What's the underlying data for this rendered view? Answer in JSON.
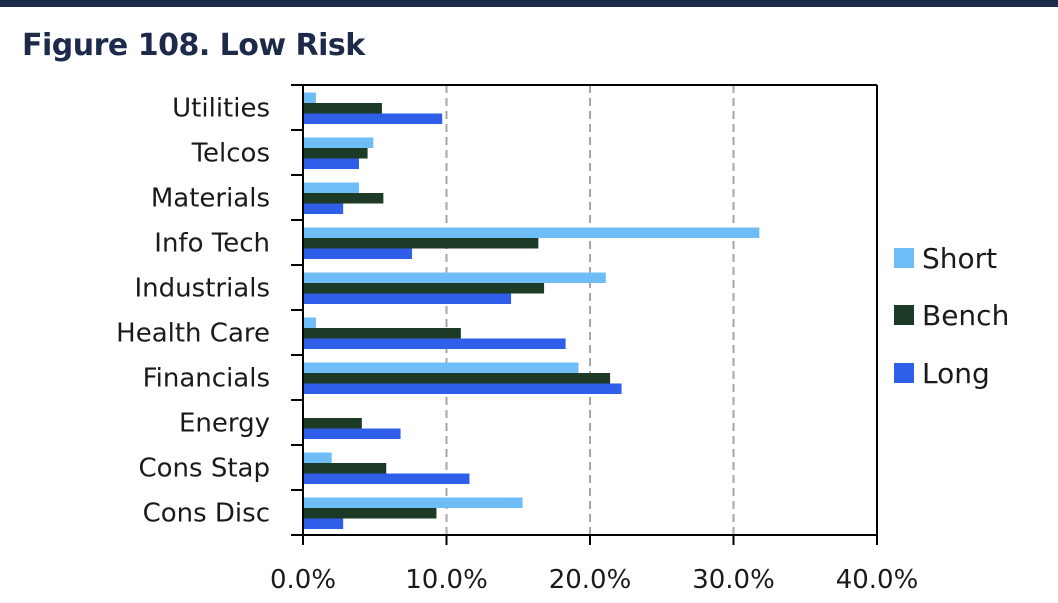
{
  "figure": {
    "title": "Figure 108. Low Risk"
  },
  "chart_data": {
    "type": "bar",
    "orientation": "horizontal",
    "categories": [
      "Utilities",
      "Telcos",
      "Materials",
      "Info Tech",
      "Industrials",
      "Health Care",
      "Financials",
      "Energy",
      "Cons Stap",
      "Cons Disc"
    ],
    "series": [
      {
        "name": "Short",
        "color": "#6fbdf6",
        "values": [
          0.9,
          4.9,
          3.9,
          31.8,
          21.1,
          0.9,
          19.2,
          0.0,
          2.0,
          15.3
        ]
      },
      {
        "name": "Bench",
        "color": "#1c3a26",
        "values": [
          5.5,
          4.5,
          5.6,
          16.4,
          16.8,
          11.0,
          21.4,
          4.1,
          5.8,
          9.3
        ]
      },
      {
        "name": "Long",
        "color": "#2f5fe8",
        "values": [
          9.7,
          3.9,
          2.8,
          7.6,
          14.5,
          18.3,
          22.2,
          6.8,
          11.6,
          2.8
        ]
      }
    ],
    "xlim": [
      0,
      40
    ],
    "xticks": [
      0,
      10,
      20,
      30,
      40
    ],
    "xtick_labels": [
      "0.0%",
      "10.0%",
      "20.0%",
      "30.0%",
      "40.0%"
    ],
    "grid": "vertical dashed",
    "legend": "right"
  }
}
